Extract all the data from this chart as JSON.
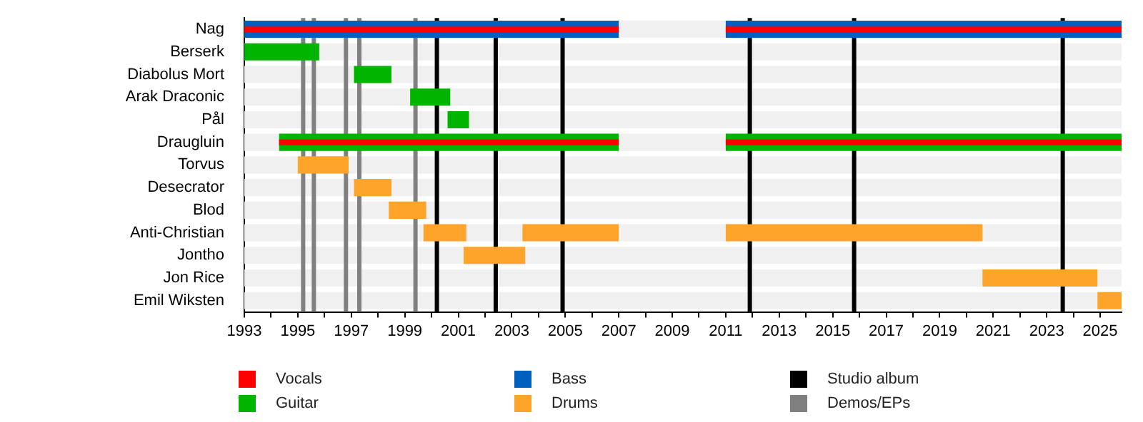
{
  "chart_data": {
    "type": "bar",
    "orientation": "horizontal",
    "categories": [
      "Nag",
      "Berserk",
      "Diabolus Mort",
      "Arak Draconic",
      "Pål",
      "Draugluin",
      "Torvus",
      "Desecrator",
      "Blod",
      "Anti-Christian",
      "Jontho",
      "Jon Rice",
      "Emil Wiksten"
    ],
    "series": [
      {
        "name": "Vocals",
        "color": "#ff0000",
        "base": [
          1993,
          null,
          null,
          null,
          null,
          1994.3,
          null,
          null,
          null,
          null,
          null,
          null,
          null
        ],
        "values": [
          14,
          null,
          null,
          null,
          null,
          12.7,
          null,
          null,
          null,
          null,
          null,
          null,
          null
        ]
      },
      {
        "color": "#ff0000",
        "base": [
          2011,
          null,
          null,
          null,
          null,
          2011,
          null,
          null,
          null,
          null,
          null,
          null,
          null
        ],
        "values": [
          14.8,
          null,
          null,
          null,
          null,
          14.8,
          null,
          null,
          null,
          null,
          null,
          null,
          null
        ]
      },
      {
        "name": "Guitar",
        "color": "#00b400",
        "base": [
          null,
          1993,
          1997.1,
          1999.2,
          2000.6,
          1994.3,
          null,
          null,
          null,
          null,
          null,
          null,
          null
        ],
        "values": [
          null,
          2.8,
          1.4,
          1.5,
          0.8,
          12.7,
          null,
          null,
          null,
          null,
          null,
          null,
          null
        ]
      },
      {
        "color": "#00b400",
        "base": [
          null,
          null,
          null,
          null,
          null,
          2011,
          null,
          null,
          null,
          null,
          null,
          null,
          null
        ],
        "values": [
          null,
          null,
          null,
          null,
          null,
          14.8,
          null,
          null,
          null,
          null,
          null,
          null,
          null
        ]
      },
      {
        "name": "Bass",
        "color": "#0060c0",
        "base": [
          1993,
          null,
          null,
          null,
          null,
          null,
          null,
          null,
          null,
          null,
          null,
          null,
          null
        ],
        "values": [
          14,
          null,
          null,
          null,
          null,
          null,
          null,
          null,
          null,
          null,
          null,
          null,
          null
        ]
      },
      {
        "color": "#0060c0",
        "base": [
          2011,
          null,
          null,
          null,
          null,
          null,
          null,
          null,
          null,
          null,
          null,
          null,
          null
        ],
        "values": [
          14.8,
          null,
          null,
          null,
          null,
          null,
          null,
          null,
          null,
          null,
          null,
          null,
          null
        ]
      },
      {
        "name": "Drums",
        "color": "#ffa42a",
        "base": [
          null,
          null,
          null,
          null,
          null,
          null,
          1995,
          1997.1,
          1998.4,
          1999.7,
          2001.2,
          2020.6,
          2024.9
        ],
        "values": [
          null,
          null,
          null,
          null,
          null,
          null,
          1.9,
          1.4,
          1.4,
          1.6,
          2.3,
          4.3,
          0.9
        ]
      },
      {
        "color": "#ffa42a",
        "base": [
          null,
          null,
          null,
          null,
          null,
          null,
          null,
          null,
          null,
          2003.4,
          null,
          null,
          null
        ],
        "values": [
          null,
          null,
          null,
          null,
          null,
          null,
          null,
          null,
          null,
          3.6,
          null,
          null,
          null
        ]
      },
      {
        "color": "#ffa42a",
        "base": [
          null,
          null,
          null,
          null,
          null,
          null,
          null,
          null,
          null,
          2011,
          null,
          null,
          null
        ],
        "values": [
          null,
          null,
          null,
          null,
          null,
          null,
          null,
          null,
          null,
          9.6,
          null,
          null,
          null
        ]
      }
    ],
    "xlim": [
      1993,
      2025.8
    ],
    "xticks": [
      1993,
      {
        "value": 1994,
        "label": null
      },
      1995,
      {
        "value": 1996,
        "label": null
      },
      1997,
      {
        "value": 1998,
        "label": null
      },
      1999,
      {
        "value": 2000,
        "label": null
      },
      2001,
      {
        "value": 2002,
        "label": null
      },
      2003,
      {
        "value": 2004,
        "label": null
      },
      2005,
      {
        "value": 2006,
        "label": null
      },
      2007,
      {
        "value": 2008,
        "label": null
      },
      2009,
      {
        "value": 2010,
        "label": null
      },
      2011,
      {
        "value": 2012,
        "label": null
      },
      2013,
      {
        "value": 2014,
        "label": null
      },
      2015,
      {
        "value": 2016,
        "label": null
      },
      2017,
      {
        "value": 2018,
        "label": null
      },
      2019,
      {
        "value": 2020,
        "label": null
      },
      2021,
      {
        "value": 2022,
        "label": null
      },
      2023,
      {
        "value": 2024,
        "label": null
      },
      2025
    ],
    "ref_lines": [
      {
        "axis": "x",
        "value": 2000.2,
        "label": "Studio album",
        "color": "#000000"
      },
      {
        "axis": "x",
        "value": 2002.4,
        "color": "#000000"
      },
      {
        "axis": "x",
        "value": 2004.9,
        "color": "#000000"
      },
      {
        "axis": "x",
        "value": 2011.9,
        "color": "#000000"
      },
      {
        "axis": "x",
        "value": 2015.8,
        "color": "#000000"
      },
      {
        "axis": "x",
        "value": 2023.6,
        "color": "#000000"
      },
      {
        "axis": "x",
        "value": 1995.2,
        "label": "Demos/EPs",
        "color": "#808080"
      },
      {
        "axis": "x",
        "value": 1995.6,
        "color": "#808080"
      },
      {
        "axis": "x",
        "value": 1996.8,
        "color": "#808080"
      },
      {
        "axis": "x",
        "value": 1997.3,
        "color": "#808080"
      },
      {
        "axis": "x",
        "value": 1999.4,
        "color": "#808080"
      }
    ],
    "legend": "bottom"
  }
}
